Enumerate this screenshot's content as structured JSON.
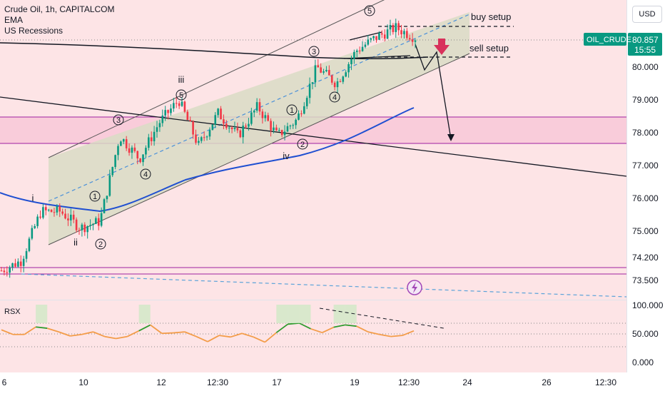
{
  "legend": {
    "symbol_line": "Crude Oil, 1h, CAPITALCOM",
    "indicator_1": "EMA",
    "indicator_2": "US Recessions"
  },
  "currency_button": "USD",
  "price_badge": {
    "symbol": "OIL_CRUDE",
    "price": "80.857",
    "countdown": "15:55",
    "color": "#089981"
  },
  "annotations": {
    "buy_setup": "buy setup",
    "sell_setup": "sell setup"
  },
  "oscillator": {
    "name": "RSX",
    "levels": [
      "100.000",
      "50.000",
      "0.000"
    ]
  },
  "colors": {
    "background_tint": "#fde4e6",
    "channel_fill": "#d9dcc4",
    "ema_line": "#1f4fd1",
    "zone_purple": "#a020a0",
    "bull_candle": "#089981",
    "bear_candle": "#f23645",
    "sell_arrow": "#d8315b",
    "rsx_green": "#2e9c2e",
    "rsx_orange": "#f39c48",
    "rsx_red": "#d0202a"
  },
  "chart_data": {
    "type": "candlestick",
    "instrument": "Crude Oil",
    "timeframe": "1h",
    "y_axis_labels": [
      "80.000",
      "79.000",
      "78.000",
      "77.000",
      "76.000",
      "75.000",
      "74.200",
      "73.500"
    ],
    "x_axis_labels": [
      "6",
      "10",
      "12",
      "12:30",
      "17",
      "19",
      "12:30",
      "24",
      "26",
      "12:30"
    ],
    "horizontal_levels": [
      78.45,
      77.7,
      74.0,
      73.75
    ],
    "last_price": 80.857,
    "price_series": [
      {
        "x": "6",
        "y": 73.8
      },
      {
        "x": "7",
        "y": 74.1
      },
      {
        "x": "8",
        "y": 75.6
      },
      {
        "x": "9",
        "y": 75.6
      },
      {
        "x": "10",
        "y": 75.1
      },
      {
        "x": "10.5",
        "y": 75.3
      },
      {
        "x": "11",
        "y": 77.9
      },
      {
        "x": "11.5",
        "y": 77.2
      },
      {
        "x": "12",
        "y": 78.3
      },
      {
        "x": "12.5",
        "y": 79.0
      },
      {
        "x": "13",
        "y": 77.6
      },
      {
        "x": "13.5",
        "y": 78.6
      },
      {
        "x": "14",
        "y": 77.9
      },
      {
        "x": "15",
        "y": 78.8
      },
      {
        "x": "16",
        "y": 77.9
      },
      {
        "x": "17",
        "y": 78.4
      },
      {
        "x": "17.5",
        "y": 80.0
      },
      {
        "x": "18",
        "y": 79.5
      },
      {
        "x": "18.5",
        "y": 80.5
      },
      {
        "x": "19",
        "y": 80.9
      },
      {
        "x": "20",
        "y": 81.2
      },
      {
        "x": "20.5",
        "y": 80.9
      }
    ],
    "wave_labels": [
      "i",
      "ii",
      "iii",
      "iv",
      "1",
      "2",
      "3",
      "4",
      "5",
      "1",
      "2",
      "3",
      "4",
      "5",
      "1",
      "2",
      "3",
      "4",
      "5"
    ],
    "rsx_series": [
      66,
      48,
      48,
      77,
      72,
      58,
      42,
      48,
      58,
      40,
      32,
      40,
      62,
      85,
      52,
      54,
      58,
      40,
      20,
      44,
      38,
      52,
      38,
      18,
      55,
      88,
      92,
      70,
      55,
      76,
      85,
      80,
      58,
      48,
      40,
      44,
      62
    ],
    "rsx_levels": [
      100,
      50,
      0
    ]
  }
}
